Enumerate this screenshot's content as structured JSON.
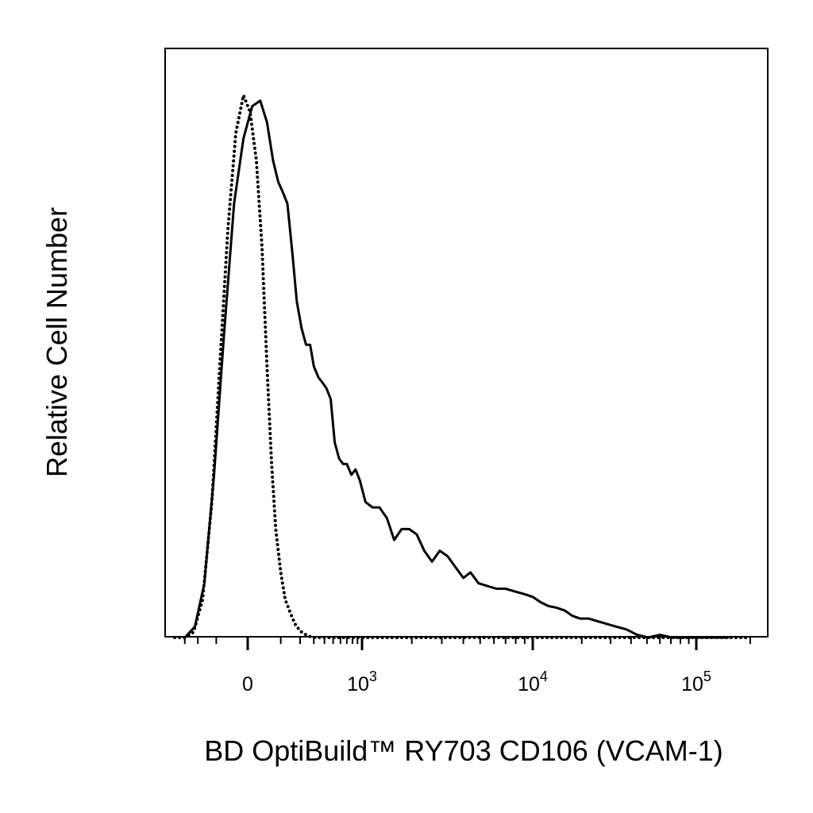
{
  "chart_data": {
    "type": "line",
    "title": "",
    "xlabel": "BD OptiBuild™ RY703 CD106 (VCAM-1)",
    "ylabel": "Relative Cell Number",
    "x_scale": "biexponential",
    "xlim": [
      -400,
      200000
    ],
    "ylim": [
      0,
      1.0
    ],
    "x_ticks": [
      {
        "value": 0,
        "base": "0",
        "exp": ""
      },
      {
        "value": 1000,
        "base": "10",
        "exp": "3"
      },
      {
        "value": 10000,
        "base": "10",
        "exp": "4"
      },
      {
        "value": 100000,
        "base": "10",
        "exp": "5"
      }
    ],
    "grid": false,
    "legend": "none",
    "series": [
      {
        "style": "solid",
        "color": "#000000",
        "x": [
          -300,
          -220,
          -160,
          -110,
          -70,
          -35,
          -10,
          10,
          30,
          50,
          70,
          90,
          110,
          130,
          155,
          180,
          210,
          240,
          270,
          300,
          340,
          380,
          420,
          470,
          520,
          580,
          640,
          700,
          780,
          860,
          950,
          1050,
          1160,
          1280,
          1420,
          1570,
          1740,
          1930,
          2140,
          2370,
          2630,
          2920,
          3240,
          3600,
          4000,
          4400,
          4900,
          5500,
          6200,
          7000,
          7900,
          9000,
          10000,
          11200,
          12500,
          14000,
          15700,
          17500,
          19500,
          22000,
          25000,
          28500,
          32500,
          37500,
          43500,
          51000,
          60000,
          71000,
          84000,
          100000,
          120000,
          150000
        ],
        "y": [
          0.0,
          0.02,
          0.1,
          0.3,
          0.55,
          0.8,
          0.92,
          0.98,
          0.99,
          0.95,
          0.88,
          0.84,
          0.82,
          0.8,
          0.71,
          0.62,
          0.57,
          0.54,
          0.54,
          0.5,
          0.48,
          0.47,
          0.46,
          0.44,
          0.36,
          0.33,
          0.32,
          0.32,
          0.3,
          0.31,
          0.29,
          0.25,
          0.24,
          0.24,
          0.22,
          0.18,
          0.2,
          0.2,
          0.19,
          0.16,
          0.14,
          0.16,
          0.15,
          0.13,
          0.11,
          0.12,
          0.1,
          0.095,
          0.09,
          0.09,
          0.085,
          0.08,
          0.075,
          0.065,
          0.058,
          0.055,
          0.05,
          0.04,
          0.035,
          0.035,
          0.03,
          0.025,
          0.02,
          0.015,
          0.005,
          0.0,
          0.005,
          0.0,
          0.0,
          0.0,
          0.0,
          0.0
        ]
      },
      {
        "style": "dotted",
        "color": "#000000",
        "x": [
          -400,
          -300,
          -230,
          -170,
          -120,
          -85,
          -55,
          -30,
          -10,
          5,
          20,
          35,
          50,
          65,
          80,
          100,
          120,
          145,
          170,
          200,
          240,
          290,
          350,
          500,
          1000,
          10000,
          100000,
          200000
        ],
        "y": [
          0.0,
          0.0,
          0.01,
          0.07,
          0.25,
          0.5,
          0.75,
          0.93,
          1.0,
          0.97,
          0.88,
          0.72,
          0.5,
          0.32,
          0.2,
          0.12,
          0.07,
          0.045,
          0.025,
          0.012,
          0.005,
          0.0,
          0.0,
          0.0,
          0.0,
          0.0,
          0.0,
          0.0
        ]
      }
    ]
  }
}
